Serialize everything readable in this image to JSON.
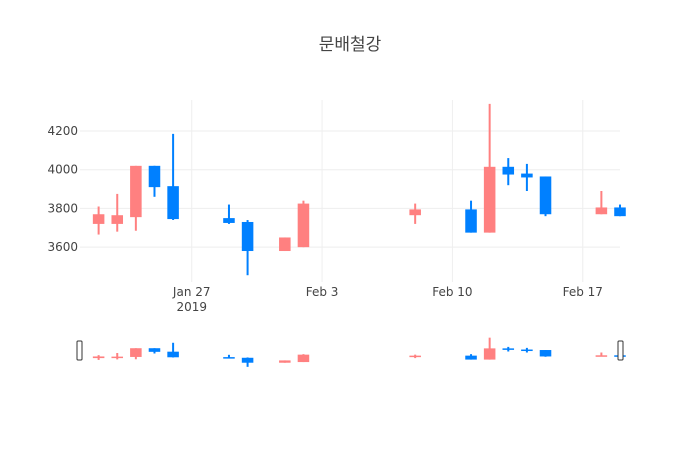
{
  "chart_data": {
    "type": "candlestick",
    "title": "문배철강",
    "xlabel": "",
    "ylabel": "",
    "y_ticks": [
      3600,
      3800,
      4000,
      4200
    ],
    "x_ticks": [
      {
        "date": "2019-01-27",
        "label": "Jan 27",
        "sublabel": "2019"
      },
      {
        "date": "2019-02-03",
        "label": "Feb 3",
        "sublabel": ""
      },
      {
        "date": "2019-02-10",
        "label": "Feb 10",
        "sublabel": ""
      },
      {
        "date": "2019-02-17",
        "label": "Feb 17",
        "sublabel": ""
      }
    ],
    "x_range": [
      "2019-01-21",
      "2019-02-19"
    ],
    "y_range": [
      3420,
      4360
    ],
    "increasing_color": "#FF8080",
    "decreasing_color": "#0080FF",
    "rangeslider": true,
    "candles": [
      {
        "date": "2019-01-22",
        "open": 3720,
        "high": 3810,
        "low": 3665,
        "close": 3770
      },
      {
        "date": "2019-01-23",
        "open": 3720,
        "high": 3875,
        "low": 3680,
        "close": 3765
      },
      {
        "date": "2019-01-24",
        "open": 3755,
        "high": 4020,
        "low": 3685,
        "close": 4020
      },
      {
        "date": "2019-01-25",
        "open": 4020,
        "high": 4020,
        "low": 3860,
        "close": 3910
      },
      {
        "date": "2019-01-26",
        "open": 3915,
        "high": 4185,
        "low": 3740,
        "close": 3745
      },
      {
        "date": "2019-01-29",
        "open": 3750,
        "high": 3820,
        "low": 3720,
        "close": 3725
      },
      {
        "date": "2019-01-30",
        "open": 3730,
        "high": 3740,
        "low": 3455,
        "close": 3580
      },
      {
        "date": "2019-02-01",
        "open": 3580,
        "high": 3650,
        "low": 3580,
        "close": 3650
      },
      {
        "date": "2019-02-02",
        "open": 3600,
        "high": 3840,
        "low": 3600,
        "close": 3825
      },
      {
        "date": "2019-02-08",
        "open": 3765,
        "high": 3825,
        "low": 3720,
        "close": 3795
      },
      {
        "date": "2019-02-11",
        "open": 3795,
        "high": 3840,
        "low": 3675,
        "close": 3675
      },
      {
        "date": "2019-02-12",
        "open": 3675,
        "high": 4340,
        "low": 3675,
        "close": 4015
      },
      {
        "date": "2019-02-13",
        "open": 4015,
        "high": 4060,
        "low": 3920,
        "close": 3975
      },
      {
        "date": "2019-02-14",
        "open": 3980,
        "high": 4030,
        "low": 3890,
        "close": 3960
      },
      {
        "date": "2019-02-15",
        "open": 3965,
        "high": 3965,
        "low": 3760,
        "close": 3770
      },
      {
        "date": "2019-02-18",
        "open": 3770,
        "high": 3890,
        "low": 3770,
        "close": 3805
      },
      {
        "date": "2019-02-19",
        "open": 3805,
        "high": 3820,
        "low": 3760,
        "close": 3760
      }
    ]
  }
}
